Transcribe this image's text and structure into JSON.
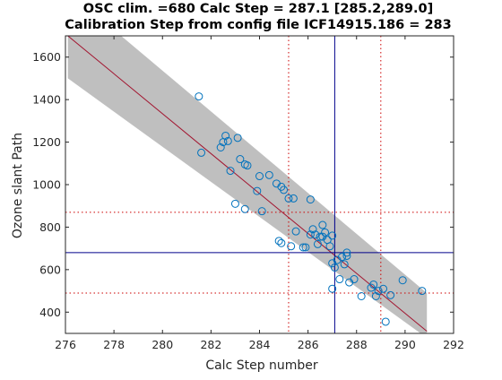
{
  "chart_data": {
    "type": "scatter",
    "title": [
      "OSC clim. =680   Calc Step = 287.1 [285.2,289.0]",
      "Calibration Step from config file ICF14915.186 = 283"
    ],
    "xlabel": "Calc Step number",
    "ylabel": "Ozone slant Path",
    "xlim": [
      276,
      292
    ],
    "ylim": [
      300,
      1700
    ],
    "xticks": [
      276,
      278,
      280,
      282,
      284,
      286,
      288,
      290,
      292
    ],
    "yticks": [
      400,
      600,
      800,
      1000,
      1200,
      1400,
      1600
    ],
    "grid": false,
    "fit_line": {
      "x": [
        276.1,
        290.9
      ],
      "y": [
        1700,
        310
      ]
    },
    "confidence_band": {
      "upper": [
        [
          276.1,
          1700
        ],
        [
          290.9,
          490
        ]
      ],
      "lower": [
        [
          276.3,
          1700
        ],
        [
          290.9,
          310
        ]
      ]
    },
    "reference_lines": {
      "calc_step": 287.1,
      "calc_step_interval": [
        285.2,
        289.0
      ],
      "osc_clim": 680,
      "osc_interval": [
        490,
        870
      ]
    },
    "points": [
      {
        "x": 281.5,
        "y": 1415
      },
      {
        "x": 281.6,
        "y": 1150
      },
      {
        "x": 282.4,
        "y": 1175
      },
      {
        "x": 282.5,
        "y": 1200
      },
      {
        "x": 282.6,
        "y": 1230
      },
      {
        "x": 282.7,
        "y": 1205
      },
      {
        "x": 282.8,
        "y": 1065
      },
      {
        "x": 283.1,
        "y": 1220
      },
      {
        "x": 283.0,
        "y": 910
      },
      {
        "x": 283.2,
        "y": 1120
      },
      {
        "x": 283.4,
        "y": 1095
      },
      {
        "x": 283.5,
        "y": 1090
      },
      {
        "x": 283.4,
        "y": 885
      },
      {
        "x": 283.9,
        "y": 970
      },
      {
        "x": 284.0,
        "y": 1040
      },
      {
        "x": 284.1,
        "y": 875
      },
      {
        "x": 284.4,
        "y": 1045
      },
      {
        "x": 284.7,
        "y": 1005
      },
      {
        "x": 284.9,
        "y": 990
      },
      {
        "x": 285.0,
        "y": 975
      },
      {
        "x": 285.2,
        "y": 935
      },
      {
        "x": 285.4,
        "y": 935
      },
      {
        "x": 284.9,
        "y": 725
      },
      {
        "x": 284.8,
        "y": 735
      },
      {
        "x": 285.3,
        "y": 710
      },
      {
        "x": 285.5,
        "y": 780
      },
      {
        "x": 285.8,
        "y": 705
      },
      {
        "x": 285.9,
        "y": 705
      },
      {
        "x": 286.1,
        "y": 930
      },
      {
        "x": 286.2,
        "y": 790
      },
      {
        "x": 286.1,
        "y": 765
      },
      {
        "x": 286.3,
        "y": 765
      },
      {
        "x": 286.5,
        "y": 755
      },
      {
        "x": 286.4,
        "y": 720
      },
      {
        "x": 286.6,
        "y": 755
      },
      {
        "x": 286.6,
        "y": 810
      },
      {
        "x": 286.7,
        "y": 775
      },
      {
        "x": 286.8,
        "y": 740
      },
      {
        "x": 286.9,
        "y": 710
      },
      {
        "x": 287.0,
        "y": 760
      },
      {
        "x": 287.0,
        "y": 630
      },
      {
        "x": 287.1,
        "y": 610
      },
      {
        "x": 287.0,
        "y": 510
      },
      {
        "x": 287.2,
        "y": 645
      },
      {
        "x": 287.4,
        "y": 660
      },
      {
        "x": 287.5,
        "y": 625
      },
      {
        "x": 287.6,
        "y": 665
      },
      {
        "x": 287.6,
        "y": 680
      },
      {
        "x": 287.7,
        "y": 540
      },
      {
        "x": 287.9,
        "y": 555
      },
      {
        "x": 287.3,
        "y": 555
      },
      {
        "x": 288.2,
        "y": 475
      },
      {
        "x": 288.6,
        "y": 515
      },
      {
        "x": 288.7,
        "y": 530
      },
      {
        "x": 288.8,
        "y": 475
      },
      {
        "x": 288.9,
        "y": 500
      },
      {
        "x": 289.2,
        "y": 355
      },
      {
        "x": 289.4,
        "y": 480
      },
      {
        "x": 289.9,
        "y": 550
      },
      {
        "x": 290.7,
        "y": 500
      },
      {
        "x": 289.1,
        "y": 510
      }
    ],
    "colors": {
      "band": "#bfbfbf",
      "fit_line": "#a2142f",
      "markers": "#0072bd",
      "calc_step_line": "#00008b",
      "dotted_lines": "#cc0000",
      "axes": "#262626"
    }
  }
}
